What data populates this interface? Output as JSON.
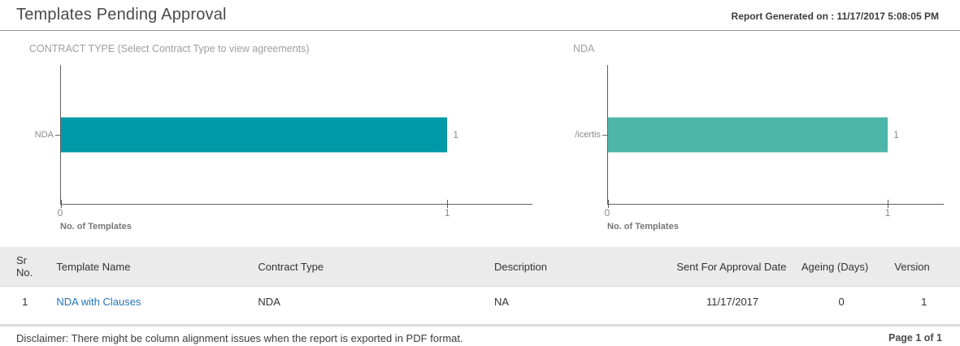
{
  "header": {
    "title": "Templates Pending Approval",
    "generated": "Report Generated on : 11/17/2017 5:08:05 PM"
  },
  "chart_data": [
    {
      "type": "bar",
      "orientation": "horizontal",
      "title": "CONTRACT TYPE (Select Contract Type to view agreements)",
      "categories": [
        "NDA"
      ],
      "values": [
        1
      ],
      "value_labels": [
        "1"
      ],
      "ticks": [
        0,
        1
      ],
      "xlim": [
        0,
        1.22
      ],
      "xlabel": "No. of Templates",
      "bar_color": "#0099A8",
      "grid": false,
      "legend": "none"
    },
    {
      "type": "bar",
      "orientation": "horizontal",
      "title": "NDA",
      "categories": [
        "/icertis"
      ],
      "values": [
        1
      ],
      "value_labels": [
        "1"
      ],
      "ticks": [
        0,
        1
      ],
      "xlim": [
        0,
        1.2
      ],
      "xlabel": "No. of Templates",
      "bar_color": "#4DB5A9",
      "grid": false,
      "legend": "none"
    }
  ],
  "table": {
    "columns": [
      "Sr No.",
      "Template Name",
      "Contract Type",
      "Description",
      "Sent For Approval Date",
      "Ageing (Days)",
      "Version"
    ],
    "rows": [
      {
        "sr": "1",
        "template_name": "NDA with Clauses",
        "contract_type": "NDA",
        "description": "NA",
        "sent_for_approval_date": "11/17/2017",
        "ageing_days": "0",
        "version": "1"
      }
    ]
  },
  "footer": {
    "disclaimer": "Disclaimer: There might be column alignment issues when the report is exported in PDF format.",
    "page": "Page 1 of 1"
  }
}
